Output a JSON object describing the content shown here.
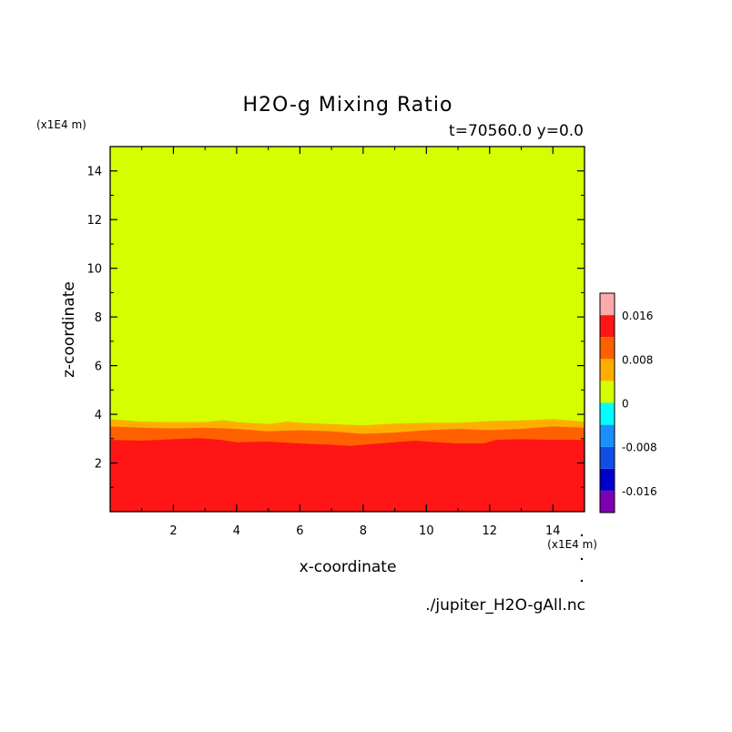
{
  "chart_data": {
    "type": "heatmap",
    "title": "H2O-g Mixing Ratio",
    "subtitle": "t=70560.0 y=0.0",
    "xlabel": "x-coordinate",
    "ylabel": "z-coordinate",
    "x_unit": "(x1E4 m)",
    "y_unit": "(x1E4 m)",
    "xlim": [
      0,
      15
    ],
    "ylim": [
      0,
      15
    ],
    "x_ticks": [
      2,
      4,
      6,
      8,
      10,
      12,
      14
    ],
    "y_ticks": [
      2,
      4,
      6,
      8,
      10,
      12,
      14
    ],
    "x_tick_labels": [
      "2",
      "4",
      "6",
      "8",
      "10",
      "12",
      "14"
    ],
    "y_tick_labels": [
      "2",
      "4",
      "6",
      "8",
      "10",
      "12",
      "14"
    ],
    "grid": false,
    "legend": "colorbar-right",
    "source_file": "./jupiter_H2O-gAll.nc",
    "colorbar": {
      "levels": [
        -0.02,
        -0.016,
        -0.012,
        -0.008,
        -0.004,
        0,
        0.004,
        0.008,
        0.012,
        0.016,
        0.02
      ],
      "colors": [
        "#7f00b0",
        "#0000cc",
        "#0f4fe6",
        "#1a90ff",
        "#00ffff",
        "#d5ff00",
        "#ffae00",
        "#ff6000",
        "#ff1515",
        "#ffaaaa"
      ],
      "tick_values": [
        -0.016,
        -0.008,
        0,
        0.008,
        0.016
      ],
      "tick_labels": [
        "-0.016",
        "-0.008",
        "0",
        "0.008",
        "0.016"
      ]
    },
    "field": {
      "background_band": {
        "value_range": [
          0,
          0.004
        ],
        "color": "#d5ff00"
      },
      "bands": [
        {
          "value_range": [
            0.004,
            0.008
          ],
          "color": "#ffae00",
          "upper_boundary": {
            "x": [
              0,
              1,
              2,
              3,
              3.6,
              4,
              5,
              5.6,
              6,
              7,
              8,
              9,
              10,
              11,
              12,
              13,
              14,
              15
            ],
            "z": [
              3.8,
              3.7,
              3.68,
              3.68,
              3.76,
              3.68,
              3.6,
              3.7,
              3.65,
              3.6,
              3.55,
              3.62,
              3.65,
              3.65,
              3.72,
              3.75,
              3.8,
              3.7
            ]
          }
        },
        {
          "value_range": [
            0.008,
            0.012
          ],
          "color": "#ff6000",
          "upper_boundary": {
            "x": [
              0,
              1,
              2,
              3,
              4,
              5,
              6,
              7,
              8,
              9,
              10,
              11,
              12,
              13,
              14,
              15
            ],
            "z": [
              3.5,
              3.45,
              3.42,
              3.45,
              3.4,
              3.3,
              3.35,
              3.3,
              3.2,
              3.25,
              3.35,
              3.4,
              3.35,
              3.4,
              3.5,
              3.45
            ]
          }
        },
        {
          "value_range": [
            0.012,
            0.016
          ],
          "color": "#ff1515",
          "upper_boundary": {
            "x": [
              0,
              1,
              2,
              2.8,
              3.5,
              4,
              5,
              6,
              7,
              7.6,
              8,
              9,
              9.6,
              10,
              11,
              11.8,
              12.2,
              13,
              14,
              15
            ],
            "z": [
              2.95,
              2.92,
              2.98,
              3.02,
              2.95,
              2.85,
              2.88,
              2.8,
              2.75,
              2.7,
              2.75,
              2.85,
              2.92,
              2.88,
              2.8,
              2.8,
              2.95,
              2.98,
              2.95,
              2.95
            ]
          }
        }
      ]
    }
  }
}
